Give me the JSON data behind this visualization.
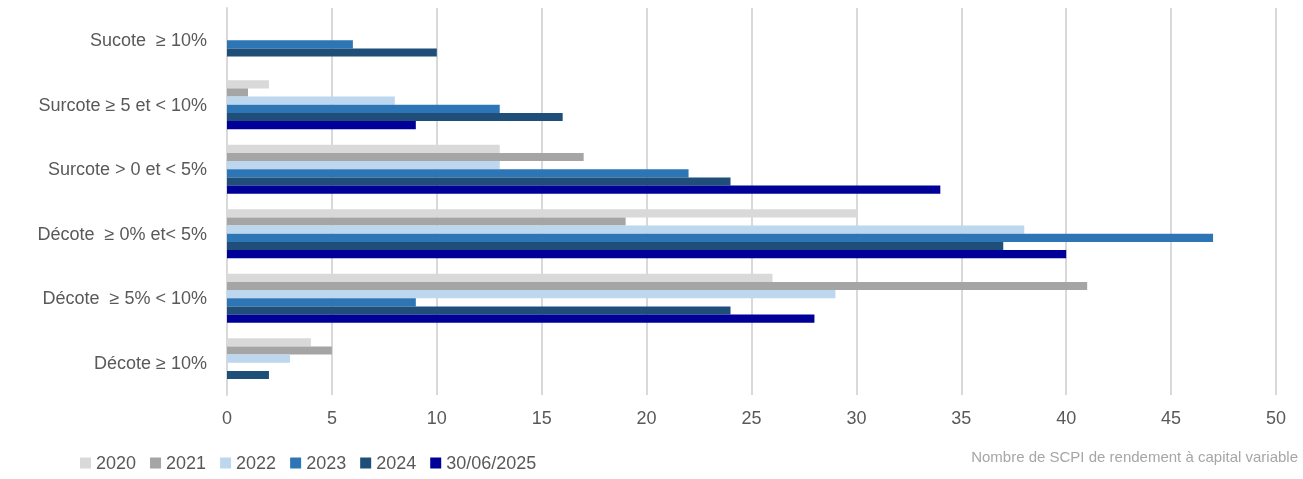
{
  "chart_data": {
    "type": "bar",
    "orientation": "horizontal",
    "xlabel": "Nombre de SCPI de rendement à capital variable",
    "categories": [
      "Sucote  ≥ 10%",
      "Surcote ≥ 5 et < 10%",
      "Surcote > 0 et < 5%",
      "Décote  ≥ 0% et< 5%",
      "Décote  ≥ 5% < 10%",
      "Décote ≥ 10%"
    ],
    "series": [
      {
        "name": "2020",
        "color": "#d9d9d9",
        "values": [
          0,
          2,
          13,
          30,
          26,
          4
        ]
      },
      {
        "name": "2021",
        "color": "#a5a5a5",
        "values": [
          0,
          1,
          17,
          19,
          41,
          5
        ]
      },
      {
        "name": "2022",
        "color": "#bdd7ee",
        "values": [
          0,
          8,
          13,
          38,
          29,
          3
        ]
      },
      {
        "name": "2023",
        "color": "#2e75b6",
        "values": [
          6,
          13,
          22,
          47,
          9,
          0
        ]
      },
      {
        "name": "2024",
        "color": "#1f4e79",
        "values": [
          10,
          16,
          24,
          37,
          24,
          2
        ]
      },
      {
        "name": "30/06/2025",
        "color": "#000099",
        "values": [
          0,
          9,
          34,
          40,
          28,
          0
        ]
      }
    ],
    "xlim": [
      0,
      50
    ],
    "xticks": [
      0,
      5,
      10,
      15,
      20,
      25,
      30,
      35,
      40,
      45,
      50
    ],
    "grid": "x",
    "legend": "bottom left"
  }
}
